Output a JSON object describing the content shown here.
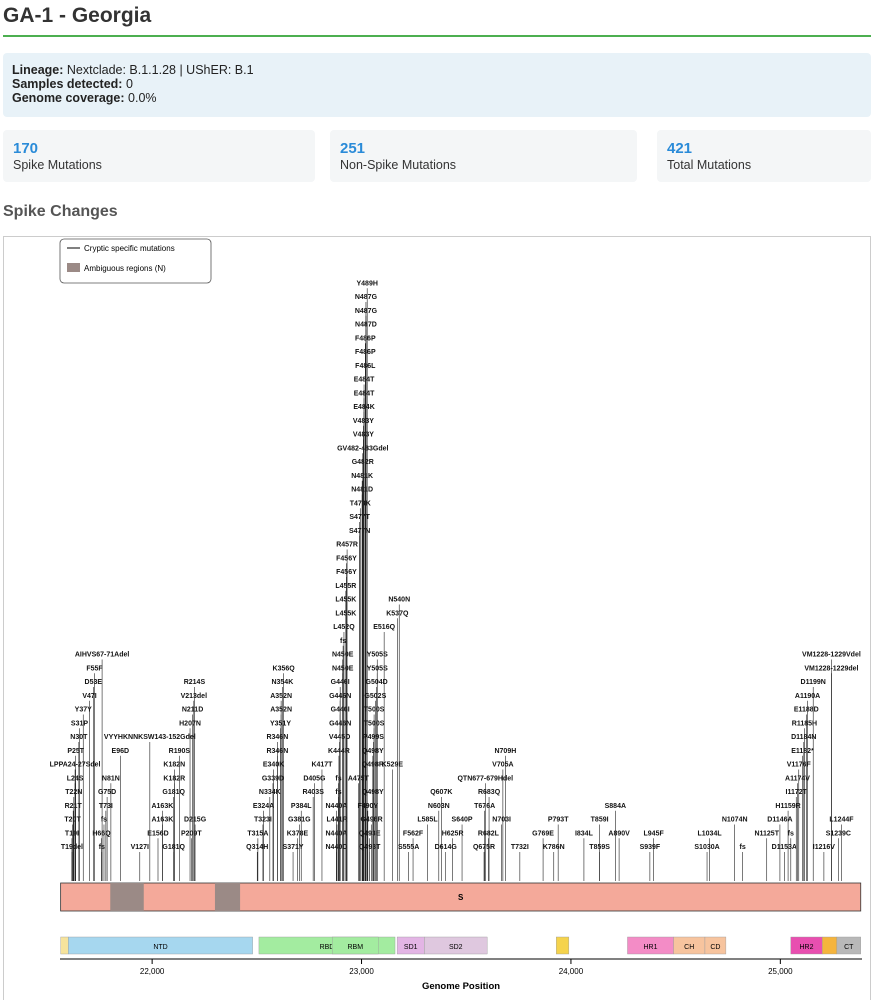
{
  "page": {
    "title": "GA-1 - Georgia"
  },
  "info": {
    "lineage_label": "Lineage:",
    "lineage_value": "Nextclade: B.1.1.28 | UShER: B.1",
    "samples_label": "Samples detected:",
    "samples_value": "0",
    "coverage_label": "Genome coverage:",
    "coverage_value": "0.0%"
  },
  "stats": [
    {
      "value": "170",
      "label": "Spike Mutations"
    },
    {
      "value": "251",
      "label": "Non-Spike Mutations"
    },
    {
      "value": "421",
      "label": "Total Mutations"
    }
  ],
  "section": {
    "title": "Spike Changes"
  },
  "legend": {
    "line_label": "Cryptic specific mutations",
    "box_label": "Ambiguous regions (N)"
  },
  "colors": {
    "accent": "#2a8bd8",
    "rule": "#4caf50",
    "spike": "#f4a99a",
    "ambiguous": "#9b8a86"
  },
  "chart_data": {
    "type": "scatter",
    "title": "",
    "xlabel": "Genome Position",
    "ylabel": "",
    "xticks": [
      22000,
      23000,
      24000,
      25000
    ],
    "xlim": [
      21560,
      25390
    ],
    "gene": {
      "name": "S",
      "start": 21563,
      "end": 25384
    },
    "ambiguous_regions": [
      [
        21800,
        21960
      ],
      [
        22300,
        22420
      ]
    ],
    "domains": [
      {
        "name": "",
        "start": 21563,
        "end": 21600,
        "color": "#f6e39c"
      },
      {
        "name": "NTD",
        "start": 21600,
        "end": 22480,
        "color": "#a6d7ef"
      },
      {
        "name": "RBD",
        "start": 22510,
        "end": 23160,
        "color": "#a3eca0"
      },
      {
        "name": "RBM",
        "start": 22860,
        "end": 23080,
        "color": "#a3eca0"
      },
      {
        "name": "SD1",
        "start": 23170,
        "end": 23300,
        "color": "#e3b5e5"
      },
      {
        "name": "SD2",
        "start": 23300,
        "end": 23600,
        "color": "#dfc8df"
      },
      {
        "name": "",
        "start": 23930,
        "end": 23990,
        "color": "#f5d34c"
      },
      {
        "name": "HR1",
        "start": 24270,
        "end": 24490,
        "color": "#f38cc6"
      },
      {
        "name": "CH",
        "start": 24490,
        "end": 24640,
        "color": "#f7c49e"
      },
      {
        "name": "CD",
        "start": 24640,
        "end": 24740,
        "color": "#f7c49e"
      },
      {
        "name": "HR2",
        "start": 25050,
        "end": 25200,
        "color": "#e84fb0"
      },
      {
        "name": "",
        "start": 25200,
        "end": 25270,
        "color": "#f5b43c"
      },
      {
        "name": "CT",
        "start": 25270,
        "end": 25384,
        "color": "#b8b8b8"
      }
    ],
    "mutations": [
      {
        "label": "T19del",
        "pos": 21617,
        "row": 0
      },
      {
        "label": "T19I",
        "pos": 21617,
        "row": 1
      },
      {
        "label": "T20T",
        "pos": 21620,
        "row": 2
      },
      {
        "label": "R21T",
        "pos": 21623,
        "row": 3
      },
      {
        "label": "T22N",
        "pos": 21626,
        "row": 4
      },
      {
        "label": "L24S",
        "pos": 21632,
        "row": 5
      },
      {
        "label": "LPPA24-27Sdel",
        "pos": 21632,
        "row": 6
      },
      {
        "label": "P25T",
        "pos": 21635,
        "row": 7
      },
      {
        "label": "N30T",
        "pos": 21650,
        "row": 8
      },
      {
        "label": "S31P",
        "pos": 21653,
        "row": 9
      },
      {
        "label": "Y37Y",
        "pos": 21671,
        "row": 10
      },
      {
        "label": "V47I",
        "pos": 21701,
        "row": 11
      },
      {
        "label": "D53E",
        "pos": 21719,
        "row": 12
      },
      {
        "label": "F55F",
        "pos": 21725,
        "row": 13
      },
      {
        "label": "AIHVS67-71Adel",
        "pos": 21761,
        "row": 14
      },
      {
        "label": "fs",
        "pos": 21760,
        "row": 0
      },
      {
        "label": "H66Q",
        "pos": 21758,
        "row": 1
      },
      {
        "label": "fs",
        "pos": 21770,
        "row": 2
      },
      {
        "label": "T73I",
        "pos": 21779,
        "row": 3
      },
      {
        "label": "G75D",
        "pos": 21785,
        "row": 4
      },
      {
        "label": "N81N",
        "pos": 21803,
        "row": 5
      },
      {
        "label": "E96D",
        "pos": 21848,
        "row": 7
      },
      {
        "label": "VYYHKNNKSW143-152Gdel",
        "pos": 21989,
        "row": 8
      },
      {
        "label": "V127I",
        "pos": 21941,
        "row": 0
      },
      {
        "label": "G181Q",
        "pos": 22103,
        "row": 0
      },
      {
        "label": "E156D",
        "pos": 22028,
        "row": 1
      },
      {
        "label": "P209T",
        "pos": 22187,
        "row": 1
      },
      {
        "label": "A163K",
        "pos": 22049,
        "row": 2
      },
      {
        "label": "D215G",
        "pos": 22205,
        "row": 2
      },
      {
        "label": "A163K",
        "pos": 22049,
        "row": 3
      },
      {
        "label": "G181Q",
        "pos": 22103,
        "row": 4
      },
      {
        "label": "K182R",
        "pos": 22106,
        "row": 5
      },
      {
        "label": "K182N",
        "pos": 22106,
        "row": 6
      },
      {
        "label": "R190S",
        "pos": 22130,
        "row": 7
      },
      {
        "label": "H207N",
        "pos": 22181,
        "row": 9
      },
      {
        "label": "N211D",
        "pos": 22193,
        "row": 10
      },
      {
        "label": "V213del",
        "pos": 22199,
        "row": 11
      },
      {
        "label": "R214S",
        "pos": 22202,
        "row": 12
      },
      {
        "label": "Q314H",
        "pos": 22502,
        "row": 0
      },
      {
        "label": "T315A",
        "pos": 22505,
        "row": 1
      },
      {
        "label": "T323I",
        "pos": 22529,
        "row": 2
      },
      {
        "label": "E324A",
        "pos": 22532,
        "row": 3
      },
      {
        "label": "N334K",
        "pos": 22562,
        "row": 4
      },
      {
        "label": "G339D",
        "pos": 22577,
        "row": 5
      },
      {
        "label": "E340K",
        "pos": 22580,
        "row": 6
      },
      {
        "label": "R346N",
        "pos": 22598,
        "row": 7
      },
      {
        "label": "R346N",
        "pos": 22598,
        "row": 8
      },
      {
        "label": "Y351Y",
        "pos": 22613,
        "row": 9
      },
      {
        "label": "A352N",
        "pos": 22616,
        "row": 10
      },
      {
        "label": "A352N",
        "pos": 22616,
        "row": 11
      },
      {
        "label": "N354K",
        "pos": 22622,
        "row": 12
      },
      {
        "label": "K356Q",
        "pos": 22628,
        "row": 13
      },
      {
        "label": "S371Y",
        "pos": 22673,
        "row": 0
      },
      {
        "label": "K378E",
        "pos": 22694,
        "row": 1
      },
      {
        "label": "G381G",
        "pos": 22703,
        "row": 2
      },
      {
        "label": "P384L",
        "pos": 22712,
        "row": 3
      },
      {
        "label": "R403S",
        "pos": 22769,
        "row": 4
      },
      {
        "label": "D405G",
        "pos": 22775,
        "row": 5
      },
      {
        "label": "K417T",
        "pos": 22811,
        "row": 6
      },
      {
        "label": "N440D",
        "pos": 22880,
        "row": 0
      },
      {
        "label": "N440A",
        "pos": 22880,
        "row": 1
      },
      {
        "label": "L441R",
        "pos": 22883,
        "row": 2
      },
      {
        "label": "N440A",
        "pos": 22880,
        "row": 3
      },
      {
        "label": "fs",
        "pos": 22890,
        "row": 4
      },
      {
        "label": "fs",
        "pos": 22890,
        "row": 5
      },
      {
        "label": "K444R",
        "pos": 22892,
        "row": 7
      },
      {
        "label": "V445D",
        "pos": 22895,
        "row": 8
      },
      {
        "label": "G446N",
        "pos": 22898,
        "row": 9
      },
      {
        "label": "G446I",
        "pos": 22898,
        "row": 10
      },
      {
        "label": "G446N",
        "pos": 22898,
        "row": 11
      },
      {
        "label": "G446I",
        "pos": 22898,
        "row": 12
      },
      {
        "label": "N450E",
        "pos": 22910,
        "row": 13
      },
      {
        "label": "N450E",
        "pos": 22910,
        "row": 14
      },
      {
        "label": "fs",
        "pos": 22912,
        "row": 15
      },
      {
        "label": "L452Q",
        "pos": 22916,
        "row": 16
      },
      {
        "label": "L455K",
        "pos": 22925,
        "row": 17
      },
      {
        "label": "L455K",
        "pos": 22925,
        "row": 18
      },
      {
        "label": "L455R",
        "pos": 22925,
        "row": 19
      },
      {
        "label": "F456Y",
        "pos": 22928,
        "row": 20
      },
      {
        "label": "F456Y",
        "pos": 22928,
        "row": 21
      },
      {
        "label": "R457R",
        "pos": 22931,
        "row": 22
      },
      {
        "label": "S477N",
        "pos": 22991,
        "row": 23
      },
      {
        "label": "S477T",
        "pos": 22991,
        "row": 24
      },
      {
        "label": "T478K",
        "pos": 22994,
        "row": 25
      },
      {
        "label": "N481D",
        "pos": 23003,
        "row": 26
      },
      {
        "label": "N481K",
        "pos": 23003,
        "row": 27
      },
      {
        "label": "G482R",
        "pos": 23006,
        "row": 28
      },
      {
        "label": "GV482-483Gdel",
        "pos": 23006,
        "row": 29
      },
      {
        "label": "V483Y",
        "pos": 23009,
        "row": 30
      },
      {
        "label": "V483Y",
        "pos": 23009,
        "row": 31
      },
      {
        "label": "E484K",
        "pos": 23012,
        "row": 32
      },
      {
        "label": "E484T",
        "pos": 23012,
        "row": 33
      },
      {
        "label": "E484T",
        "pos": 23012,
        "row": 34
      },
      {
        "label": "F486L",
        "pos": 23018,
        "row": 35
      },
      {
        "label": "F486P",
        "pos": 23018,
        "row": 36
      },
      {
        "label": "F486P",
        "pos": 23018,
        "row": 37
      },
      {
        "label": "N487D",
        "pos": 23021,
        "row": 38
      },
      {
        "label": "N487G",
        "pos": 23021,
        "row": 39
      },
      {
        "label": "N487G",
        "pos": 23021,
        "row": 40
      },
      {
        "label": "Y489H",
        "pos": 23027,
        "row": 41
      },
      {
        "label": "Q493T",
        "pos": 23039,
        "row": 0
      },
      {
        "label": "Q493E",
        "pos": 23039,
        "row": 1
      },
      {
        "label": "G496R",
        "pos": 23048,
        "row": 2
      },
      {
        "label": "F490Y",
        "pos": 23030,
        "row": 3
      },
      {
        "label": "Q498Y",
        "pos": 23054,
        "row": 4
      },
      {
        "label": "A475T",
        "pos": 22985,
        "row": 5
      },
      {
        "label": "Q498R",
        "pos": 23054,
        "row": 6
      },
      {
        "label": "Q498Y",
        "pos": 23054,
        "row": 7
      },
      {
        "label": "P499S",
        "pos": 23057,
        "row": 8
      },
      {
        "label": "T500S",
        "pos": 23060,
        "row": 9
      },
      {
        "label": "T500S",
        "pos": 23060,
        "row": 10
      },
      {
        "label": "G502S",
        "pos": 23066,
        "row": 11
      },
      {
        "label": "G504D",
        "pos": 23072,
        "row": 12
      },
      {
        "label": "Y505S",
        "pos": 23075,
        "row": 13
      },
      {
        "label": "Y505S",
        "pos": 23075,
        "row": 14
      },
      {
        "label": "E516Q",
        "pos": 23108,
        "row": 16
      },
      {
        "label": "K537Q",
        "pos": 23171,
        "row": 17
      },
      {
        "label": "N540N",
        "pos": 23180,
        "row": 18
      },
      {
        "label": "K529E",
        "pos": 23147,
        "row": 6
      },
      {
        "label": "S555A",
        "pos": 23225,
        "row": 0
      },
      {
        "label": "F562F",
        "pos": 23246,
        "row": 1
      },
      {
        "label": "L585L",
        "pos": 23315,
        "row": 2
      },
      {
        "label": "N603N",
        "pos": 23369,
        "row": 3
      },
      {
        "label": "Q607K",
        "pos": 23381,
        "row": 4
      },
      {
        "label": "D614G",
        "pos": 23402,
        "row": 0
      },
      {
        "label": "H625R",
        "pos": 23435,
        "row": 1
      },
      {
        "label": "S640P",
        "pos": 23480,
        "row": 2
      },
      {
        "label": "Q675R",
        "pos": 23585,
        "row": 0
      },
      {
        "label": "R682L",
        "pos": 23606,
        "row": 1
      },
      {
        "label": "T676A",
        "pos": 23588,
        "row": 3
      },
      {
        "label": "N703I",
        "pos": 23669,
        "row": 2
      },
      {
        "label": "R683Q",
        "pos": 23609,
        "row": 4
      },
      {
        "label": "QTN677-679Hdel",
        "pos": 23591,
        "row": 5
      },
      {
        "label": "V705A",
        "pos": 23675,
        "row": 6
      },
      {
        "label": "N709H",
        "pos": 23687,
        "row": 7
      },
      {
        "label": "T732I",
        "pos": 23756,
        "row": 0
      },
      {
        "label": "G769E",
        "pos": 23867,
        "row": 1
      },
      {
        "label": "K786N",
        "pos": 23918,
        "row": 0
      },
      {
        "label": "P793T",
        "pos": 23939,
        "row": 2
      },
      {
        "label": "I834L",
        "pos": 24062,
        "row": 1
      },
      {
        "label": "T859S",
        "pos": 24137,
        "row": 0
      },
      {
        "label": "T859I",
        "pos": 24137,
        "row": 2
      },
      {
        "label": "S884A",
        "pos": 24212,
        "row": 3
      },
      {
        "label": "A890V",
        "pos": 24230,
        "row": 1
      },
      {
        "label": "S939F",
        "pos": 24377,
        "row": 0
      },
      {
        "label": "L945F",
        "pos": 24395,
        "row": 1
      },
      {
        "label": "S1030A",
        "pos": 24650,
        "row": 0
      },
      {
        "label": "L1034L",
        "pos": 24662,
        "row": 1
      },
      {
        "label": "N1074N",
        "pos": 24782,
        "row": 2
      },
      {
        "label": "fs",
        "pos": 24820,
        "row": 0
      },
      {
        "label": "N1125T",
        "pos": 24935,
        "row": 1
      },
      {
        "label": "D1153A",
        "pos": 25019,
        "row": 0
      },
      {
        "label": "D1146A",
        "pos": 24998,
        "row": 2
      },
      {
        "label": "fs",
        "pos": 25050,
        "row": 1
      },
      {
        "label": "H1159R",
        "pos": 25037,
        "row": 3
      },
      {
        "label": "I1172T",
        "pos": 25076,
        "row": 4
      },
      {
        "label": "V1176F",
        "pos": 25088,
        "row": 6
      },
      {
        "label": "A1174V",
        "pos": 25082,
        "row": 5
      },
      {
        "label": "E1182*",
        "pos": 25106,
        "row": 7
      },
      {
        "label": "D1184N",
        "pos": 25112,
        "row": 8
      },
      {
        "label": "R1185H",
        "pos": 25115,
        "row": 9
      },
      {
        "label": "E1188D",
        "pos": 25124,
        "row": 10
      },
      {
        "label": "A1190A",
        "pos": 25130,
        "row": 11
      },
      {
        "label": "D1199N",
        "pos": 25157,
        "row": 12
      },
      {
        "label": "VM1228-1229del",
        "pos": 25244,
        "row": 13
      },
      {
        "label": "VM1228-1229Vdel",
        "pos": 25244,
        "row": 14
      },
      {
        "label": "I1216V",
        "pos": 25208,
        "row": 0
      },
      {
        "label": "S1239C",
        "pos": 25277,
        "row": 1
      },
      {
        "label": "L1244F",
        "pos": 25292,
        "row": 2
      }
    ]
  }
}
